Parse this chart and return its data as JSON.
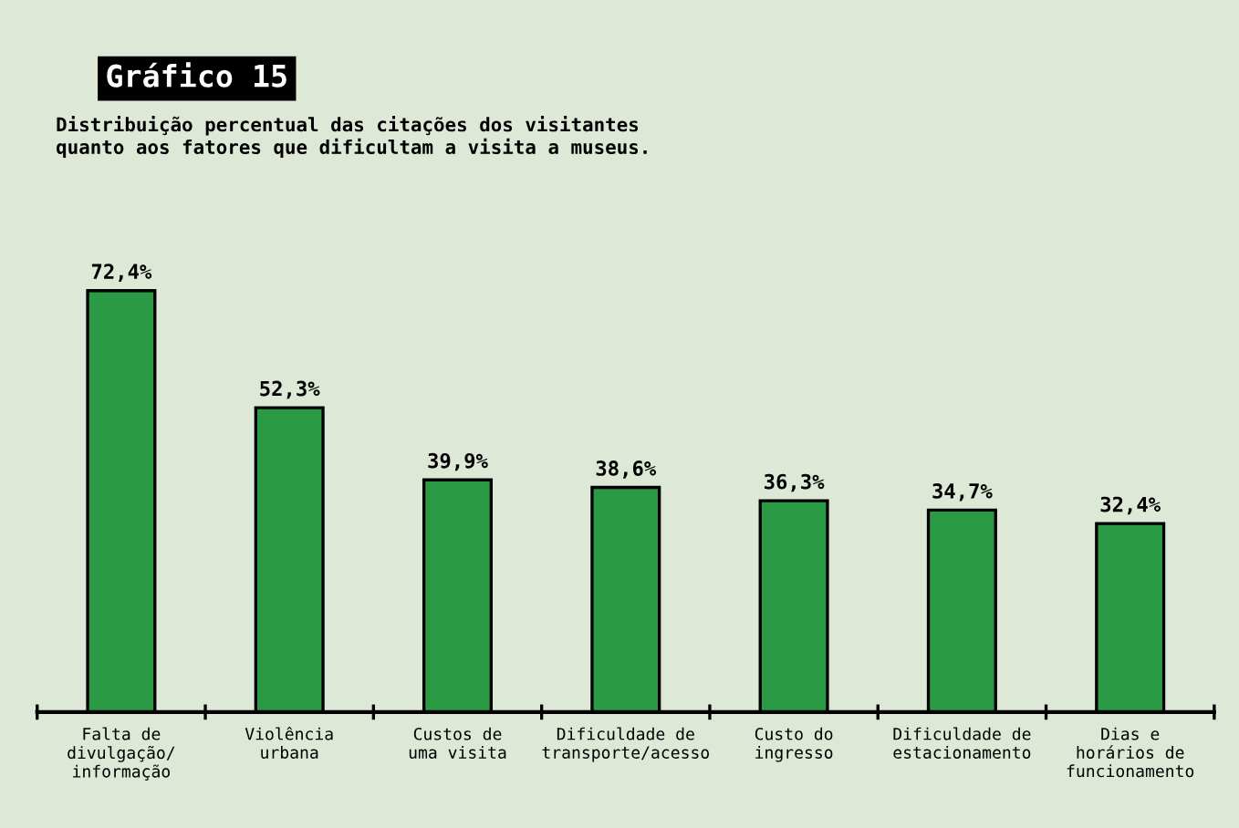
{
  "chart_data": {
    "type": "bar",
    "title": "Gráfico 15",
    "subtitle": "Distribuição percentual das citações dos visitantes\nquanto aos fatores que dificultam a visita a museus.",
    "categories": [
      "Falta de\ndivulgação/\ninformação",
      "Violência\nurbana",
      "Custos de\numa visita",
      "Dificuldade de\ntransporte/acesso",
      "Custo do\ningresso",
      "Dificuldade de\nestacionamento",
      "Dias e\nhorários de\nfuncionamento"
    ],
    "values": [
      72.4,
      52.3,
      39.9,
      38.6,
      36.3,
      34.7,
      32.4
    ],
    "value_labels": [
      "72,4%",
      "52,3%",
      "39,9%",
      "38,6%",
      "36,3%",
      "34,7%",
      "32,4%"
    ],
    "color": "#2a9a44",
    "grid": false,
    "legend": false
  }
}
